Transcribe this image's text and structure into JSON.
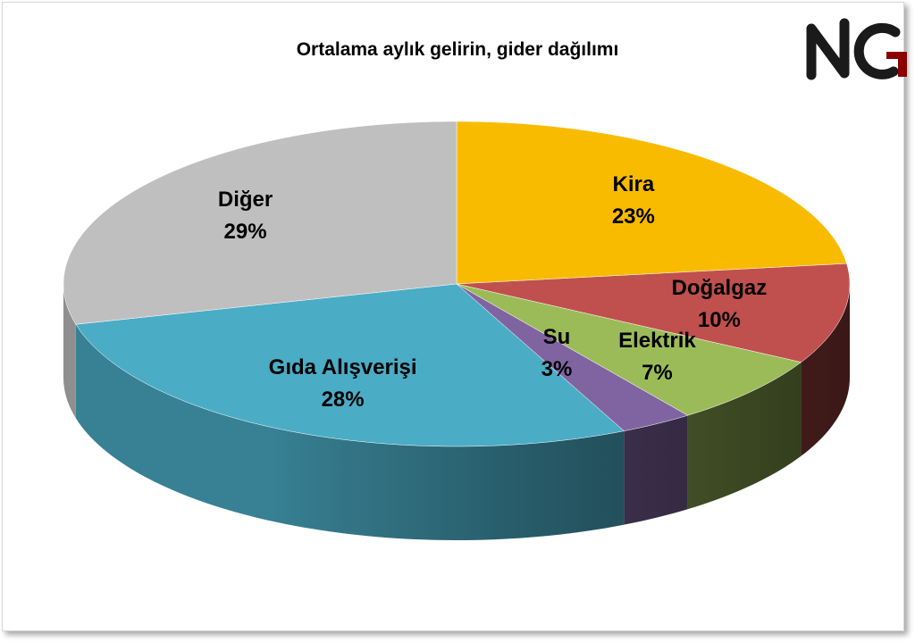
{
  "chart_data": {
    "type": "pie",
    "title": "Ortalama aylık gelirin, gider dağılımı",
    "style": "3d",
    "legend": "none",
    "slices": [
      {
        "label": "Kira",
        "value": 23,
        "value_label": "23%",
        "color": "#f9bb00"
      },
      {
        "label": "Doğalgaz",
        "value": 10,
        "value_label": "10%",
        "color": "#c0504d"
      },
      {
        "label": "Elektrik",
        "value": 7,
        "value_label": "7%",
        "color": "#9bbb59"
      },
      {
        "label": "Su",
        "value": 3,
        "value_label": "3%",
        "color": "#8064a2"
      },
      {
        "label": "Gıda Alışverişi",
        "value": 28,
        "value_label": "28%",
        "color": "#4bacc6"
      },
      {
        "label": "Diğer",
        "value": 29,
        "value_label": "29%",
        "color": "#bfbfbf"
      }
    ]
  },
  "logo": {
    "text": "NG",
    "accent_color": "#c00000"
  }
}
